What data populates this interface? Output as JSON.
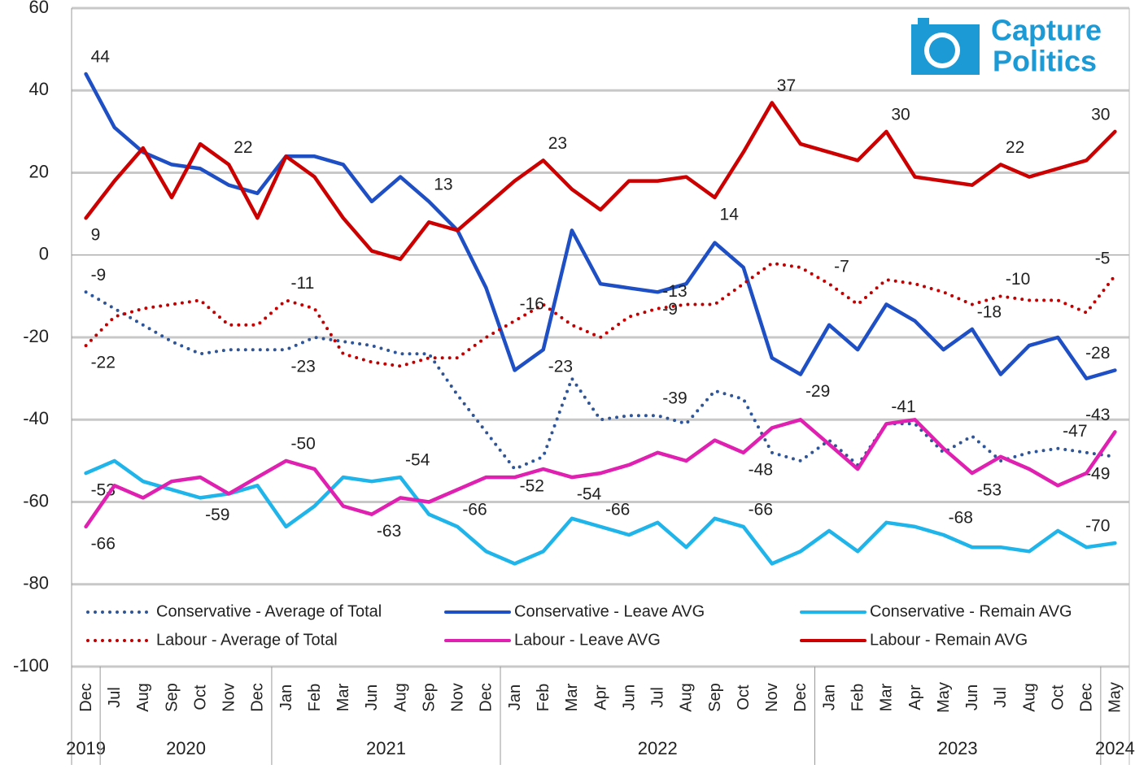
{
  "logo": {
    "line1": "Capture",
    "line2": "Politics"
  },
  "chart_data": {
    "type": "line",
    "categories": [
      "Dec",
      "Jul",
      "Aug",
      "Sep",
      "Oct",
      "Nov",
      "Dec",
      "Jan",
      "Feb",
      "Mar",
      "Jun",
      "Aug",
      "Sep",
      "Nov",
      "Dec",
      "Jan",
      "Feb",
      "Mar",
      "Apr",
      "Jun",
      "Jul",
      "Aug",
      "Sep",
      "Oct",
      "Nov",
      "Dec",
      "Jan",
      "Feb",
      "Mar",
      "Apr",
      "May",
      "Jun",
      "Jul",
      "Aug",
      "Oct",
      "Dec",
      "May"
    ],
    "x_groups": [
      {
        "label": "2019",
        "start": 0,
        "end": 0
      },
      {
        "label": "2020",
        "start": 1,
        "end": 6
      },
      {
        "label": "2021",
        "start": 7,
        "end": 14
      },
      {
        "label": "2022",
        "start": 15,
        "end": 25
      },
      {
        "label": "2023",
        "start": 26,
        "end": 35
      },
      {
        "label": "2024",
        "start": 36,
        "end": 36
      }
    ],
    "ylim": [
      -100,
      60
    ],
    "yticks": [
      -100,
      -80,
      -60,
      -40,
      -20,
      0,
      20,
      40,
      60
    ],
    "grid": true,
    "series": [
      {
        "name": "Conservative - Average of Total",
        "color": "#2f5597",
        "style": "dotted",
        "values": [
          -9,
          -13,
          -17,
          -21,
          -24,
          -23,
          -23,
          -23,
          -20,
          -21,
          -22,
          -24,
          -24,
          -34,
          -43,
          -52,
          -49,
          -30,
          -40,
          -39,
          -39,
          -41,
          -33,
          -35,
          -48,
          -50,
          -45,
          -51,
          -41,
          -41,
          -48,
          -44,
          -50,
          -48,
          -47,
          -48,
          -49
        ],
        "label_indices": [
          0,
          7,
          15,
          20,
          34,
          36
        ]
      },
      {
        "name": "Conservative - Leave AVG",
        "color": "#1f4fc4",
        "style": "solid",
        "values": [
          44,
          31,
          25,
          22,
          21,
          17,
          15,
          24,
          24,
          22,
          13,
          19,
          13,
          6,
          -8,
          -28,
          -23,
          6,
          -7,
          -8,
          -9,
          -7,
          3,
          -3,
          -25,
          -29,
          -17,
          -23,
          -12,
          -16,
          -23,
          -18,
          -29,
          -22,
          -20,
          -30,
          -28
        ],
        "label_indices": [
          0,
          12,
          16,
          20,
          25,
          31,
          36
        ]
      },
      {
        "name": "Conservative - Remain AVG",
        "color": "#1fb4ea",
        "style": "solid",
        "values": [
          -53,
          -50,
          -55,
          -57,
          -59,
          -58,
          -56,
          -66,
          -61,
          -54,
          -55,
          -54,
          -63,
          -66,
          -72,
          -75,
          -72,
          -64,
          -66,
          -68,
          -65,
          -71,
          -64,
          -66,
          -75,
          -72,
          -67,
          -72,
          -65,
          -66,
          -68,
          -71,
          -71,
          -72,
          -67,
          -71,
          -70
        ],
        "label_indices": [
          0,
          4,
          11,
          13,
          18,
          23,
          30,
          36
        ]
      },
      {
        "name": "Labour - Average of Total",
        "color": "#c00000",
        "style": "dotted",
        "values": [
          -22,
          -15,
          -13,
          -12,
          -11,
          -17,
          -17,
          -11,
          -13,
          -24,
          -26,
          -27,
          -25,
          -25,
          -20,
          -16,
          -12,
          -17,
          -20,
          -15,
          -13,
          -12,
          -12,
          -7,
          -2,
          -3,
          -7,
          -12,
          -6,
          -7,
          -9,
          -12,
          -10,
          -11,
          -11,
          -14,
          -5
        ],
        "label_indices": [
          0,
          7,
          15,
          20,
          26,
          32,
          36
        ]
      },
      {
        "name": "Labour - Leave AVG",
        "color": "#e020b0",
        "style": "solid",
        "values": [
          -66,
          -56,
          -59,
          -55,
          -54,
          -58,
          -54,
          -50,
          -52,
          -61,
          -63,
          -59,
          -60,
          -57,
          -54,
          -54,
          -52,
          -54,
          -53,
          -51,
          -48,
          -50,
          -45,
          -48,
          -42,
          -40,
          -46,
          -52,
          -41,
          -40,
          -47,
          -53,
          -49,
          -52,
          -56,
          -53,
          -43
        ],
        "label_indices": [
          0,
          7,
          10,
          17,
          23,
          28,
          31,
          36
        ]
      },
      {
        "name": "Labour - Remain AVG",
        "color": "#cc0000",
        "style": "solid",
        "values": [
          9,
          18,
          26,
          14,
          27,
          22,
          9,
          24,
          19,
          9,
          1,
          -1,
          8,
          6,
          12,
          18,
          23,
          16,
          11,
          18,
          18,
          19,
          14,
          25,
          37,
          27,
          25,
          23,
          30,
          19,
          18,
          17,
          22,
          19,
          21,
          23,
          30
        ],
        "label_indices": [
          0,
          5,
          16,
          22,
          24,
          28,
          32,
          36
        ]
      }
    ]
  }
}
